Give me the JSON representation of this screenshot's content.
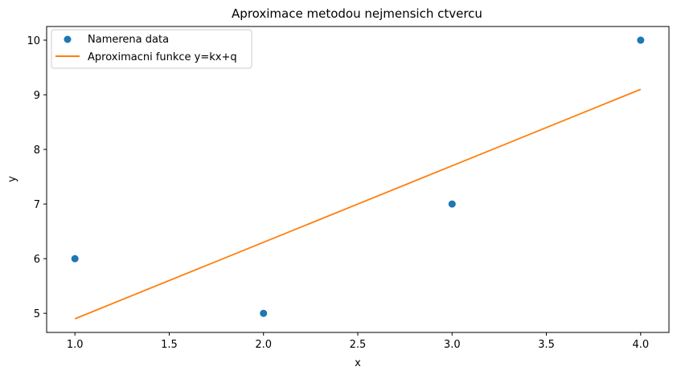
{
  "chart_data": {
    "type": "scatter",
    "title": "Aproximace metodou nejmensich ctvercu",
    "xlabel": "x",
    "ylabel": "y",
    "xlim": [
      0.85,
      4.15
    ],
    "ylim": [
      4.65,
      10.25
    ],
    "xticks": [
      1.0,
      1.5,
      2.0,
      2.5,
      3.0,
      3.5,
      4.0
    ],
    "xtick_labels": [
      "1.0",
      "1.5",
      "2.0",
      "2.5",
      "3.0",
      "3.5",
      "4.0"
    ],
    "yticks": [
      5,
      6,
      7,
      8,
      9,
      10
    ],
    "ytick_labels": [
      "5",
      "6",
      "7",
      "8",
      "9",
      "10"
    ],
    "grid": false,
    "legend_position": "top-left",
    "series": [
      {
        "name": "Namerena data",
        "kind": "scatter",
        "color": "#1f77b4",
        "x": [
          1,
          2,
          3,
          4
        ],
        "y": [
          6,
          5,
          7,
          10
        ]
      },
      {
        "name": "Aproximacni funkce y=kx+q",
        "kind": "line",
        "color": "#ff7f0e",
        "x": [
          1,
          4
        ],
        "y": [
          4.9,
          9.1
        ]
      }
    ]
  }
}
